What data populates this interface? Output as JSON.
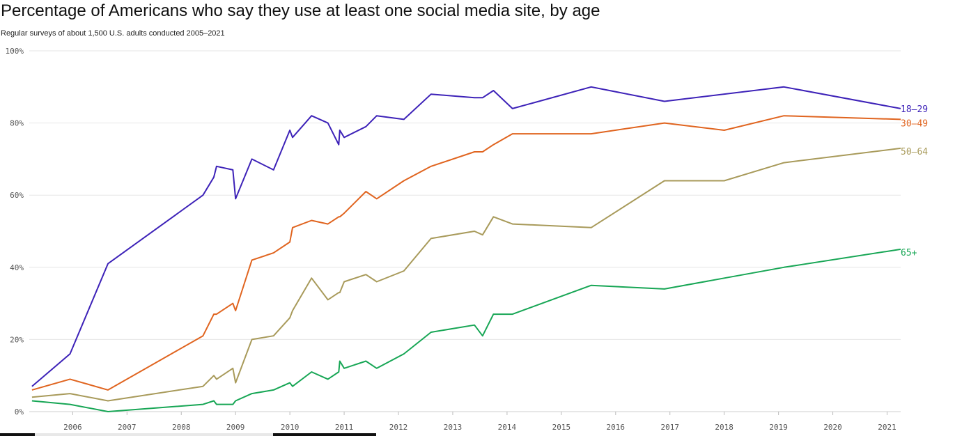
{
  "chart_data": {
    "type": "line",
    "title": "Percentage of Americans who say they use at least one social media site, by age",
    "subtitle": "Regular surveys of about 1,500 U.S. adults conducted 2005–2021",
    "y_ticks": [
      "0%",
      "20%",
      "40%",
      "60%",
      "80%",
      "100%"
    ],
    "ylim": [
      0,
      100
    ],
    "x_ticks": [
      "2006",
      "2007",
      "2008",
      "2009",
      "2010",
      "2011",
      "2012",
      "2013",
      "2014",
      "2015",
      "2016",
      "2017",
      "2018",
      "2019",
      "2020",
      "2021"
    ],
    "xlim": [
      2005.2,
      2021.25
    ],
    "grid": true,
    "series": [
      {
        "name": "18–29",
        "color": "#3d22b8",
        "x": [
          2005.25,
          2005.95,
          2006.65,
          2008.4,
          2008.6,
          2008.65,
          2008.95,
          2009.0,
          2009.3,
          2009.7,
          2010.0,
          2010.05,
          2010.4,
          2010.7,
          2010.9,
          2010.92,
          2011.0,
          2011.4,
          2011.6,
          2012.1,
          2012.6,
          2013.4,
          2013.55,
          2013.75,
          2014.1,
          2015.55,
          2016.9,
          2019.1,
          2021.25
        ],
        "y": [
          7,
          16,
          41,
          60,
          65,
          68,
          67,
          59,
          70,
          67,
          78,
          76,
          82,
          80,
          74,
          78,
          76,
          79,
          82,
          81,
          88,
          87,
          87,
          89,
          84,
          90,
          86,
          90,
          84
        ]
      },
      {
        "name": "30–49",
        "color": "#e0641f",
        "x": [
          2005.25,
          2005.95,
          2006.65,
          2008.4,
          2008.6,
          2008.65,
          2008.95,
          2009.0,
          2009.3,
          2009.7,
          2010.0,
          2010.05,
          2010.4,
          2010.7,
          2010.9,
          2010.92,
          2011.0,
          2011.4,
          2011.6,
          2012.1,
          2012.6,
          2013.4,
          2013.55,
          2013.75,
          2014.1,
          2015.55,
          2016.9,
          2018.0,
          2019.1,
          2021.25
        ],
        "y": [
          6,
          9,
          6,
          21,
          27,
          27,
          30,
          28,
          42,
          44,
          47,
          51,
          53,
          52,
          54,
          54,
          55,
          61,
          59,
          64,
          68,
          72,
          72,
          74,
          77,
          77,
          80,
          78,
          82,
          81
        ]
      },
      {
        "name": "50–64",
        "color": "#a89a5a",
        "x": [
          2005.25,
          2005.95,
          2006.65,
          2008.4,
          2008.6,
          2008.65,
          2008.95,
          2009.0,
          2009.3,
          2009.7,
          2010.0,
          2010.05,
          2010.4,
          2010.7,
          2010.9,
          2010.92,
          2011.0,
          2011.4,
          2011.6,
          2012.1,
          2012.6,
          2013.4,
          2013.55,
          2013.75,
          2014.1,
          2015.55,
          2016.9,
          2018.0,
          2019.1,
          2021.25
        ],
        "y": [
          4,
          5,
          3,
          7,
          10,
          9,
          12,
          8,
          20,
          21,
          26,
          28,
          37,
          31,
          33,
          33,
          36,
          38,
          36,
          39,
          48,
          50,
          49,
          54,
          52,
          51,
          64,
          64,
          69,
          73
        ]
      },
      {
        "name": "65+",
        "color": "#17a655",
        "x": [
          2005.25,
          2005.95,
          2006.65,
          2008.4,
          2008.6,
          2008.65,
          2008.95,
          2009.0,
          2009.3,
          2009.7,
          2010.0,
          2010.05,
          2010.4,
          2010.7,
          2010.9,
          2010.92,
          2011.0,
          2011.4,
          2011.6,
          2012.1,
          2012.6,
          2013.4,
          2013.55,
          2013.75,
          2014.1,
          2015.55,
          2016.9,
          2018.0,
          2019.1,
          2021.25
        ],
        "y": [
          3,
          2,
          0,
          2,
          3,
          2,
          2,
          3,
          5,
          6,
          8,
          7,
          11,
          9,
          11,
          14,
          12,
          14,
          12,
          16,
          22,
          24,
          21,
          27,
          27,
          35,
          34,
          37,
          40,
          45
        ]
      }
    ]
  }
}
